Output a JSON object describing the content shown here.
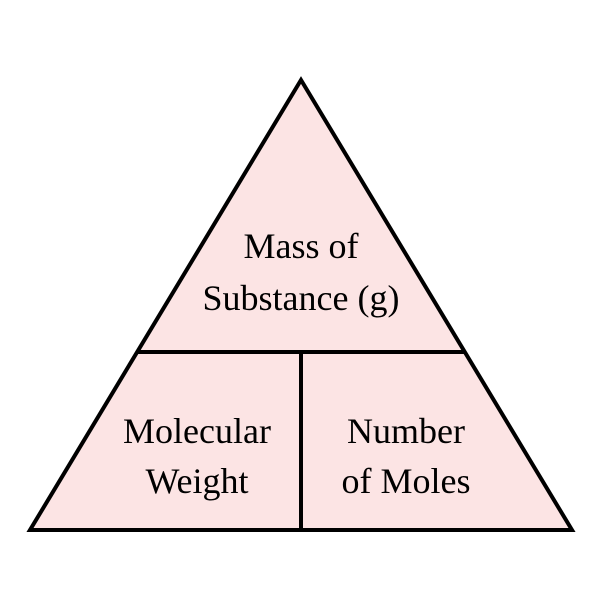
{
  "colors": {
    "fill": "#fce4e4",
    "stroke": "#000000"
  },
  "top": {
    "line1": "Mass of",
    "line2": "Substance (g)"
  },
  "bottom_left": {
    "line1": "Molecular",
    "line2": "Weight"
  },
  "bottom_right": {
    "line1": "Number",
    "line2": "of Moles"
  }
}
